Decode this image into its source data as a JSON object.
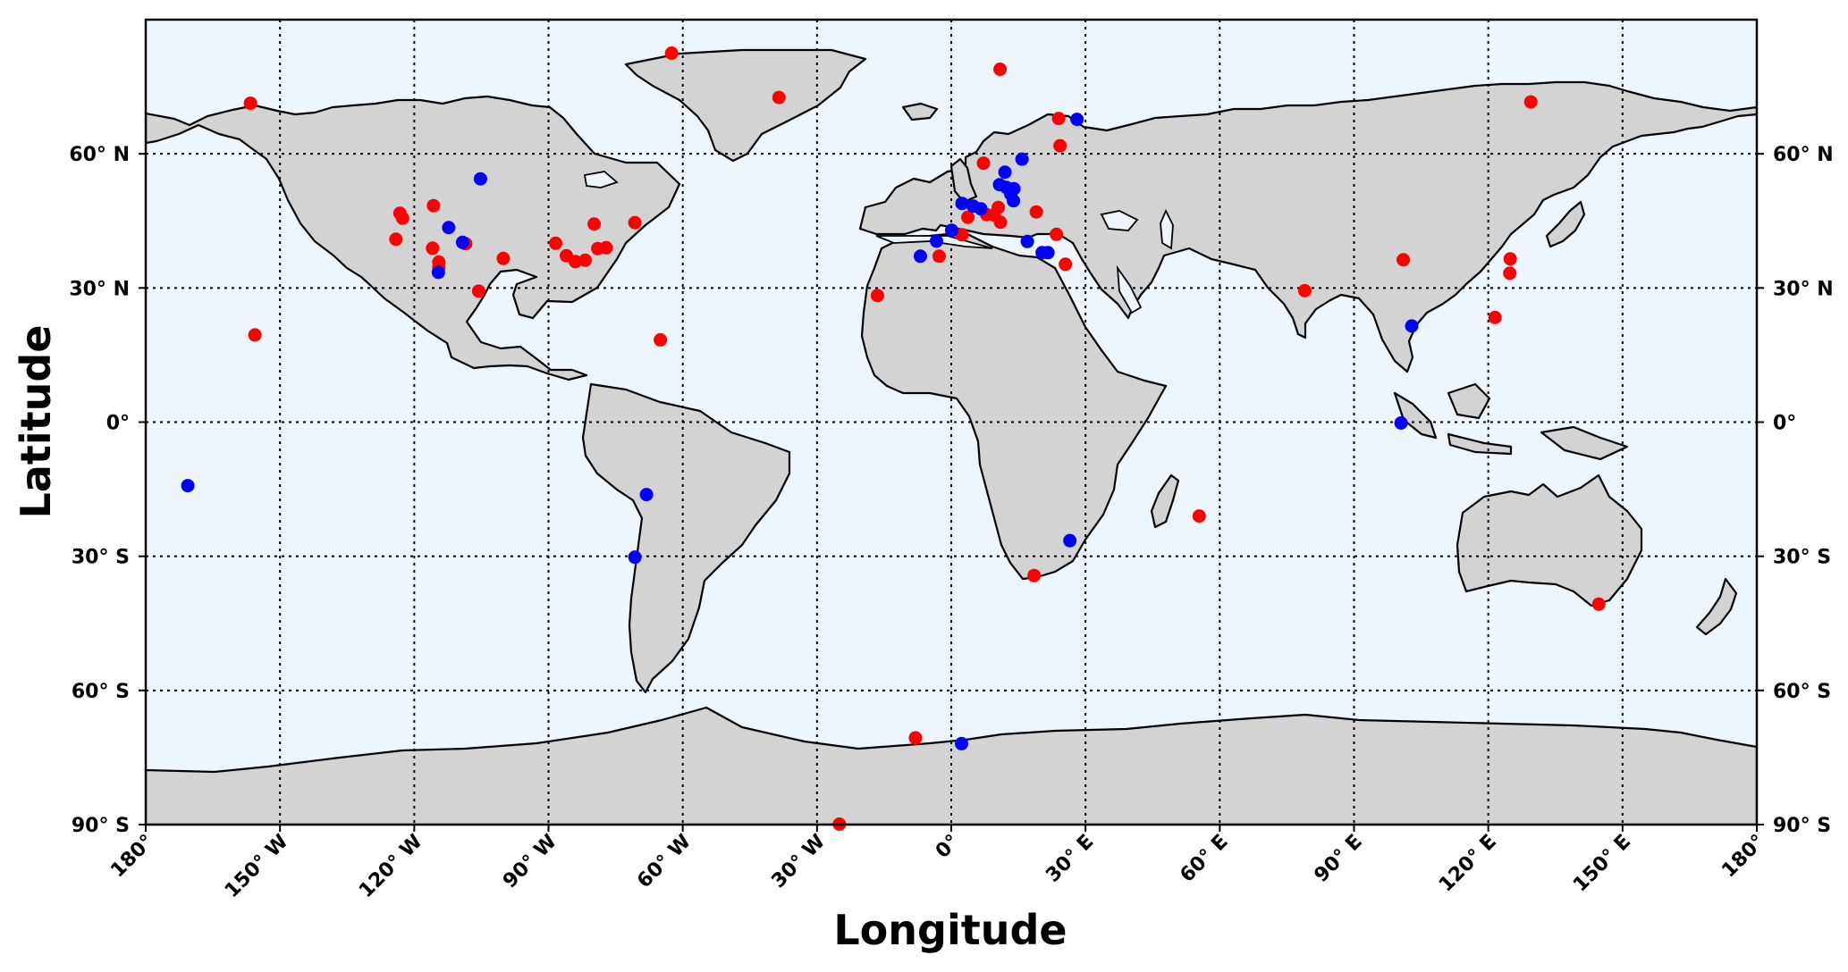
{
  "chart_data": {
    "type": "scatter",
    "projection": "plate-carree",
    "xlabel": "Longitude",
    "ylabel": "Latitude",
    "xlim": [
      -180,
      180
    ],
    "ylim": [
      -90,
      90
    ],
    "grid": true,
    "grid_style": "dotted",
    "ocean_color": "#eef6fd",
    "land_color": "#d3d3d3",
    "lon_ticks": [
      {
        "value": -180,
        "label": "180°"
      },
      {
        "value": -150,
        "label": "150° W"
      },
      {
        "value": -120,
        "label": "120° W"
      },
      {
        "value": -90,
        "label": "90° W"
      },
      {
        "value": -60,
        "label": "60° W"
      },
      {
        "value": -30,
        "label": "30° W"
      },
      {
        "value": 0,
        "label": "0°"
      },
      {
        "value": 30,
        "label": "30° E"
      },
      {
        "value": 60,
        "label": "60° E"
      },
      {
        "value": 90,
        "label": "90° E"
      },
      {
        "value": 120,
        "label": "120° E"
      },
      {
        "value": 150,
        "label": "150° E"
      },
      {
        "value": 180,
        "label": "180°"
      }
    ],
    "lat_ticks": [
      {
        "value": 60,
        "label": "60° N"
      },
      {
        "value": 30,
        "label": "30° N"
      },
      {
        "value": 0,
        "label": "0°"
      },
      {
        "value": -30,
        "label": "30° S"
      },
      {
        "value": -60,
        "label": "60° S"
      },
      {
        "value": -90,
        "label": "90° S"
      }
    ],
    "series": [
      {
        "color": "#ff0000",
        "points": [
          [
            -156.6,
            71.3
          ],
          [
            -155.6,
            19.5
          ],
          [
            -124.1,
            40.9
          ],
          [
            -123.2,
            46.7
          ],
          [
            -122.6,
            45.6
          ],
          [
            -115.7,
            48.4
          ],
          [
            -115.9,
            38.9
          ],
          [
            -114.5,
            35.8
          ],
          [
            -114.5,
            34.6
          ],
          [
            -108.5,
            39.9
          ],
          [
            -105.6,
            29.3
          ],
          [
            -100.1,
            36.6
          ],
          [
            -88.4,
            40.0
          ],
          [
            -86.0,
            37.2
          ],
          [
            -84.0,
            35.9
          ],
          [
            -81.8,
            36.2
          ],
          [
            -79.8,
            44.3
          ],
          [
            -79.0,
            38.8
          ],
          [
            -77.1,
            39.0
          ],
          [
            -70.7,
            44.6
          ],
          [
            -65.0,
            18.4
          ],
          [
            -62.5,
            82.5
          ],
          [
            -38.5,
            72.6
          ],
          [
            -16.5,
            28.3
          ],
          [
            -8.0,
            -70.6
          ],
          [
            -25.0,
            -89.9
          ],
          [
            -2.7,
            37.1
          ],
          [
            2.4,
            41.9
          ],
          [
            3.7,
            45.8
          ],
          [
            7.2,
            57.9
          ],
          [
            7.9,
            46.4
          ],
          [
            9.6,
            46.3
          ],
          [
            10.9,
            78.9
          ],
          [
            10.5,
            48.0
          ],
          [
            11.0,
            44.7
          ],
          [
            19.0,
            47.0
          ],
          [
            18.5,
            -34.3
          ],
          [
            23.5,
            42.0
          ],
          [
            24.0,
            67.9
          ],
          [
            24.3,
            61.8
          ],
          [
            25.5,
            35.3
          ],
          [
            55.4,
            -21.0
          ],
          [
            79.0,
            29.4
          ],
          [
            101.0,
            36.3
          ],
          [
            121.5,
            23.4
          ],
          [
            124.9,
            36.5
          ],
          [
            124.8,
            33.3
          ],
          [
            129.5,
            71.6
          ],
          [
            144.7,
            -40.7
          ]
        ]
      },
      {
        "color": "#0000ff",
        "points": [
          [
            -170.6,
            -14.2
          ],
          [
            -114.6,
            33.5
          ],
          [
            -112.3,
            43.5
          ],
          [
            -109.2,
            40.2
          ],
          [
            -105.2,
            54.4
          ],
          [
            -68.1,
            -16.2
          ],
          [
            -70.7,
            -30.2
          ],
          [
            -6.9,
            37.1
          ],
          [
            -3.3,
            40.5
          ],
          [
            0.1,
            42.9
          ],
          [
            2.4,
            48.9
          ],
          [
            4.9,
            48.3
          ],
          [
            6.6,
            47.7
          ],
          [
            10.8,
            53.1
          ],
          [
            12.0,
            55.9
          ],
          [
            12.3,
            52.5
          ],
          [
            13.3,
            51.0
          ],
          [
            13.9,
            49.5
          ],
          [
            14.0,
            52.2
          ],
          [
            15.8,
            58.8
          ],
          [
            17.0,
            40.4
          ],
          [
            20.3,
            37.9
          ],
          [
            21.6,
            37.9
          ],
          [
            26.5,
            -26.5
          ],
          [
            28.1,
            67.7
          ],
          [
            100.5,
            -0.2
          ],
          [
            102.9,
            21.5
          ],
          [
            2.3,
            -71.9
          ]
        ]
      }
    ]
  }
}
